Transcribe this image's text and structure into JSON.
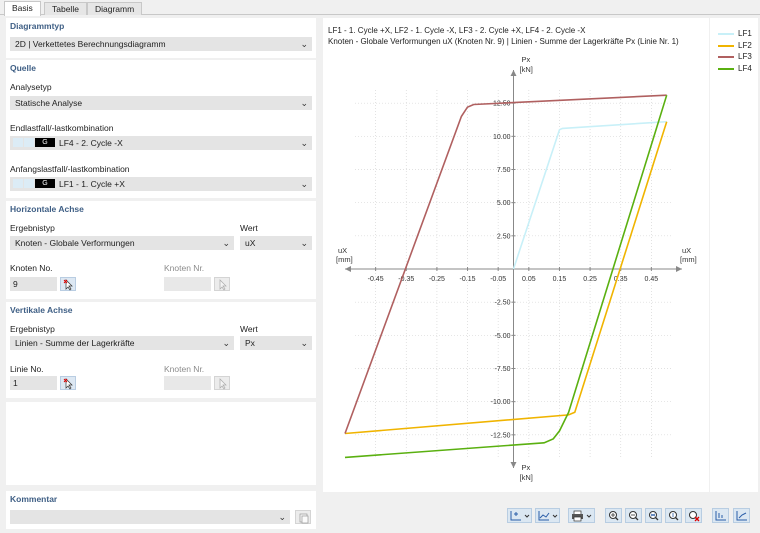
{
  "tabs": [
    "Basis",
    "Tabelle",
    "Diagramm"
  ],
  "diagrammtyp": {
    "title": "Diagrammtyp",
    "value": "2D | Verkettetes Berechnungsdiagramm"
  },
  "quelle": {
    "title": "Quelle",
    "analysetyp_label": "Analysetyp",
    "analysetyp_value": "Statische Analyse",
    "end_label": "Endlastfall/-lastkombination",
    "end_badge": "G",
    "end_value": "LF4 - 2. Cycle -X",
    "start_label": "Anfangslastfall/-lastkombination",
    "start_badge": "G",
    "start_value": "LF1 - 1. Cycle +X"
  },
  "horizontal": {
    "title": "Horizontale Achse",
    "ergebnistyp_label": "Ergebnistyp",
    "ergebnistyp_value": "Knoten - Globale Verformungen",
    "wert_label": "Wert",
    "wert_value": "uX",
    "knoten_no_label": "Knoten No.",
    "knoten_no_value": "9",
    "knoten_nr_label": "Knoten Nr."
  },
  "vertical": {
    "title": "Vertikale Achse",
    "ergebnistyp_label": "Ergebnistyp",
    "ergebnistyp_value": "Linien - Summe der Lagerkräfte",
    "wert_label": "Wert",
    "wert_value": "Px",
    "linie_no_label": "Linie No.",
    "linie_no_value": "1",
    "knoten_nr_label": "Knoten Nr."
  },
  "kommentar": {
    "title": "Kommentar",
    "value": ""
  },
  "toolbar_icons": [
    "axis-options-icon",
    "graph-options-icon",
    "print-icon",
    "zoom-in-icon",
    "zoom-out-icon",
    "zoom-x-icon",
    "zoom-y-icon",
    "reset-zoom-icon",
    "axes-icon",
    "axes-alt-icon"
  ],
  "chart_header": {
    "line1": "LF1 - 1. Cycle +X, LF2 - 1. Cycle -X, LF3 - 2. Cycle +X, LF4 - 2. Cycle -X",
    "line2": "Knoten - Globale Verformungen uX (Knoten Nr. 9) | Linien - Summe der Lagerkräfte Px (Linie Nr. 1)"
  },
  "chart_data": {
    "type": "line",
    "x_label": "uX",
    "x_unit": "[mm]",
    "y_label": "Px",
    "y_unit": "[kN]",
    "xlim": [
      -0.55,
      0.55
    ],
    "ylim": [
      -15,
      15
    ],
    "x_ticks": [
      -0.45,
      -0.35,
      -0.25,
      -0.15,
      -0.05,
      0.05,
      0.15,
      0.25,
      0.35,
      0.45
    ],
    "x_tick_labels": [
      "-0.45",
      "-0.35",
      "-0.25",
      "-0.15",
      "-0.05",
      "0.05",
      "0.15",
      "0.25",
      "0.35",
      "0.45"
    ],
    "y_ticks": [
      12.5,
      10.0,
      7.5,
      5.0,
      2.5,
      -2.5,
      -5.0,
      -7.5,
      -10.0,
      -12.5
    ],
    "y_tick_labels": [
      "12.50",
      "10.00",
      "7.50",
      "5.00",
      "2.50",
      "-2.50",
      "-5.00",
      "-7.50",
      "-10.00",
      "-12.50"
    ],
    "grid": true,
    "legend_position": "right",
    "series": [
      {
        "name": "LF1",
        "color": "#c8f0f8",
        "x": [
          0.0,
          0.15,
          0.16,
          0.5
        ],
        "y": [
          0.0,
          10.5,
          10.6,
          11.1
        ]
      },
      {
        "name": "LF2",
        "color": "#f0b400",
        "x": [
          0.5,
          0.2,
          0.18,
          -0.55
        ],
        "y": [
          11.1,
          -10.8,
          -11.0,
          -12.4
        ]
      },
      {
        "name": "LF3",
        "color": "#b06060",
        "x": [
          -0.55,
          -0.17,
          -0.15,
          -0.13,
          0.5
        ],
        "y": [
          -12.4,
          11.5,
          12.2,
          12.4,
          13.1
        ]
      },
      {
        "name": "LF4",
        "color": "#5ab010",
        "x": [
          0.5,
          0.18,
          0.15,
          0.13,
          0.1,
          -0.55
        ],
        "y": [
          13.1,
          -10.8,
          -12.2,
          -12.8,
          -13.1,
          -14.2
        ]
      }
    ]
  }
}
